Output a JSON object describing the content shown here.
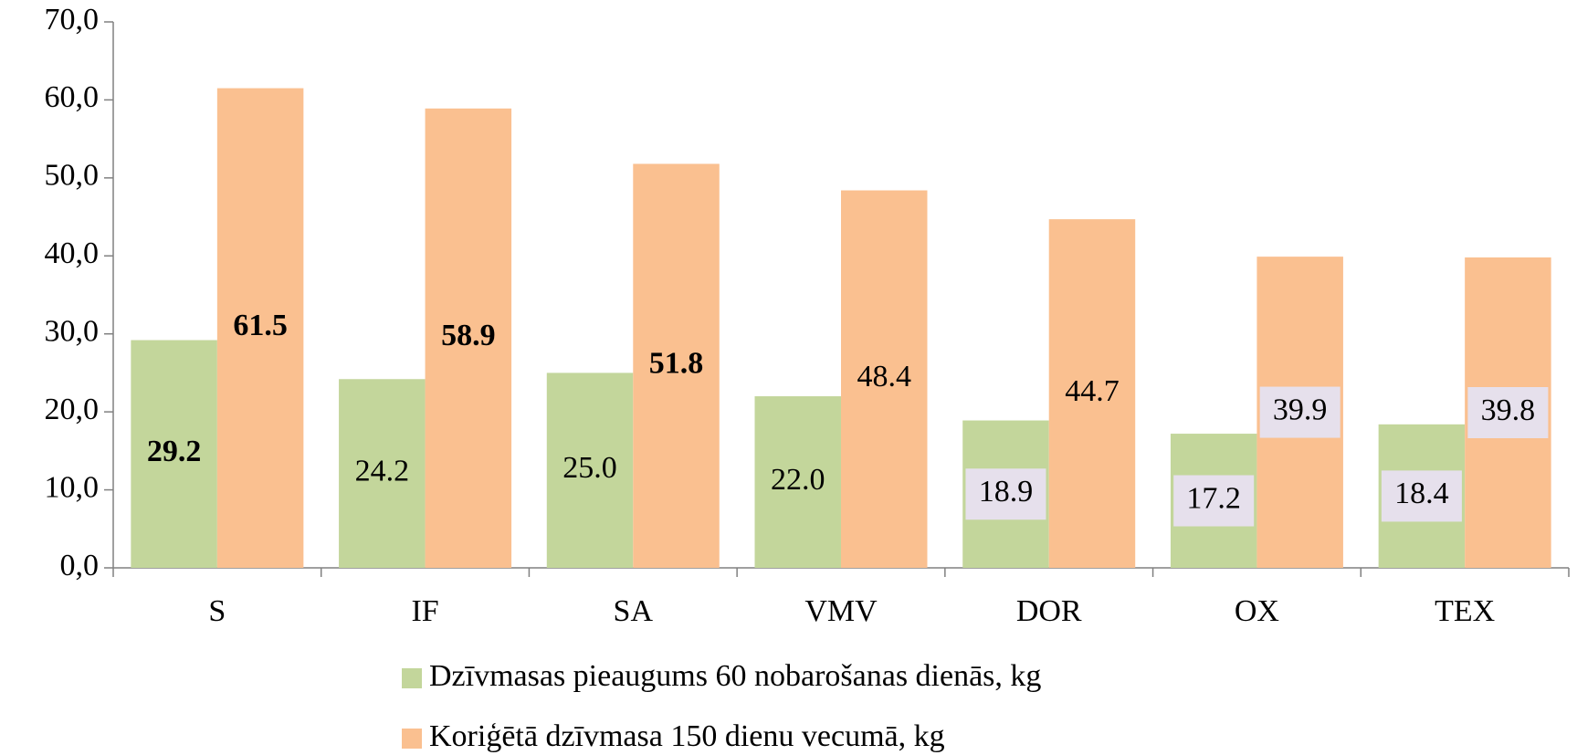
{
  "chart_data": {
    "type": "bar",
    "categories": [
      "S",
      "IF",
      "SA",
      "VMV",
      "DOR",
      "OX",
      "TEX"
    ],
    "series": [
      {
        "name": "Dzīvmasas pieaugums 60 nobarošanas dienās, kg",
        "color": "#c3d69b",
        "values": [
          29.2,
          24.2,
          25.0,
          22.0,
          18.9,
          17.2,
          18.4
        ],
        "value_labels": [
          "29.2",
          "24.2",
          "25.0",
          "22.0",
          "18.9",
          "17.2",
          "18.4"
        ]
      },
      {
        "name": "Koriģētā dzīvmasa 150 dienu vecumā, kg",
        "color": "#fac090",
        "values": [
          61.5,
          58.9,
          51.8,
          48.4,
          44.7,
          39.9,
          39.8
        ],
        "value_labels": [
          "61.5",
          "58.9",
          "51.8",
          "48.4",
          "44.7",
          "39.9",
          "39.8"
        ]
      }
    ],
    "ylim": [
      0,
      70
    ],
    "yticks": [
      {
        "value": 0,
        "label": "0,0"
      },
      {
        "value": 10,
        "label": "10,0"
      },
      {
        "value": 20,
        "label": "20,0"
      },
      {
        "value": 30,
        "label": "30,0"
      },
      {
        "value": 40,
        "label": "40,0"
      },
      {
        "value": 50,
        "label": "50,0"
      },
      {
        "value": 60,
        "label": "60,0"
      },
      {
        "value": 70,
        "label": "70,0"
      }
    ],
    "legend": "bottom"
  }
}
